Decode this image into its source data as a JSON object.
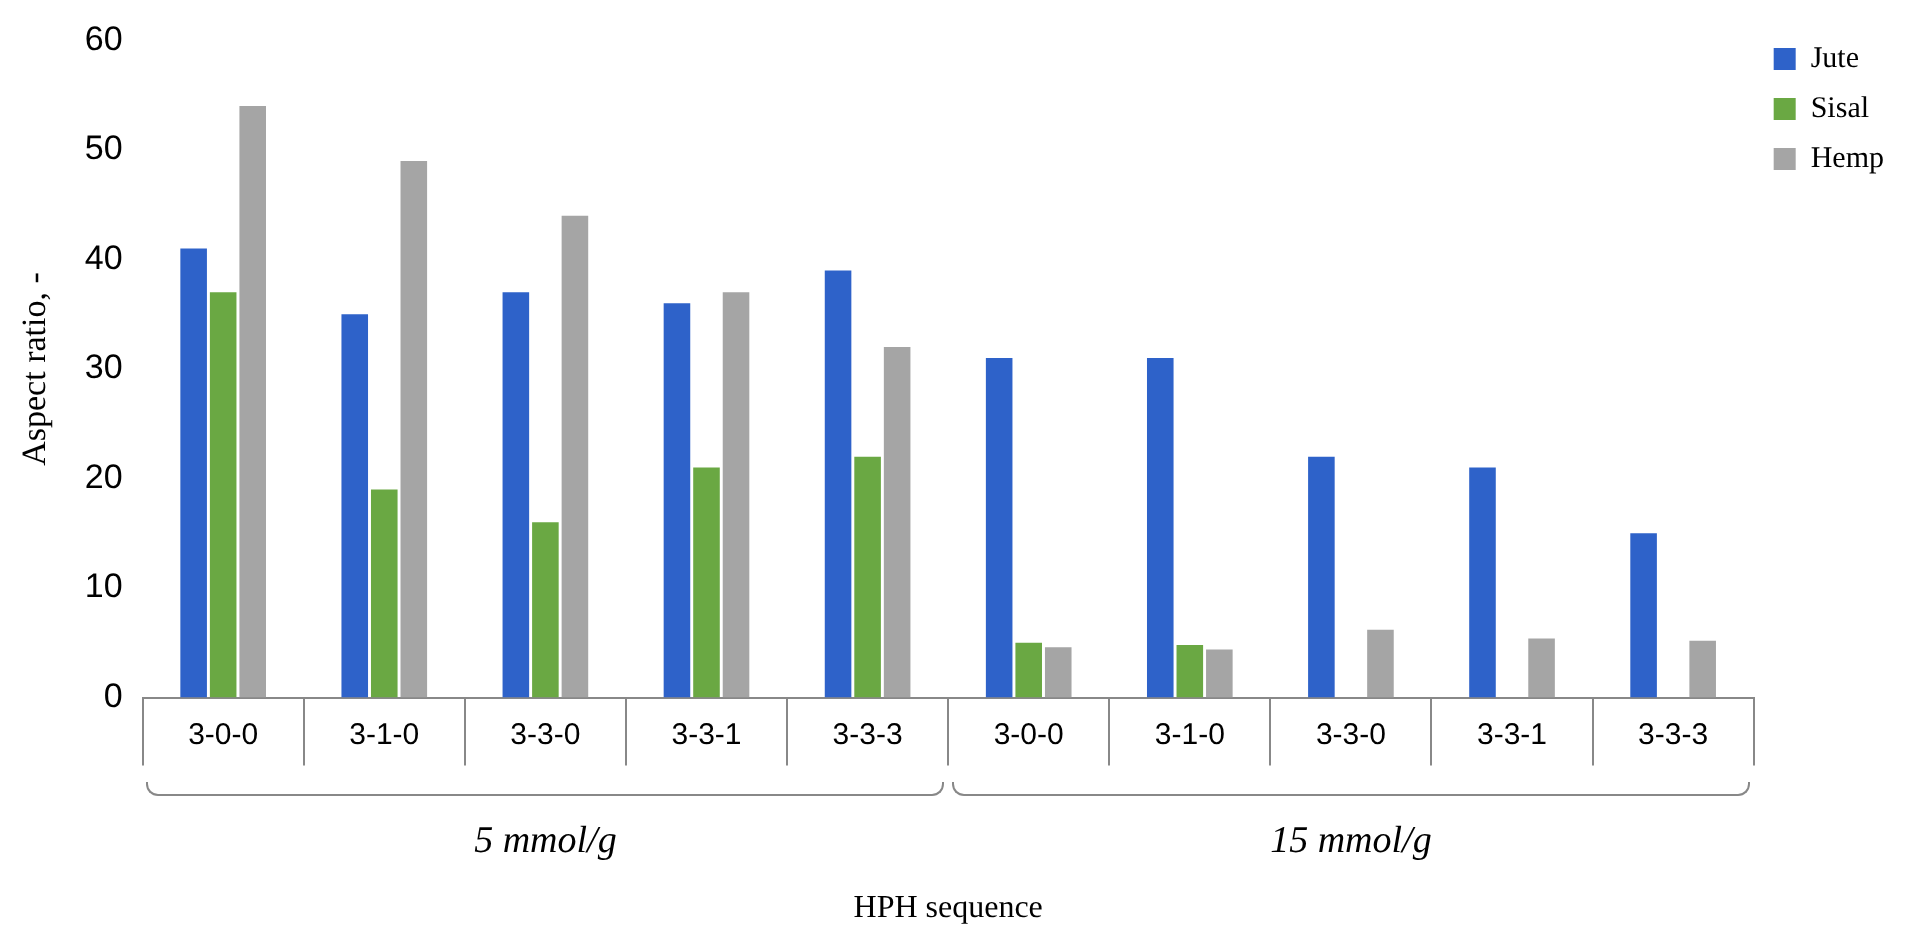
{
  "chart_data": {
    "type": "bar",
    "xlabel": "HPH sequence",
    "ylabel": "Aspect ratio, -",
    "categories": [
      "3-0-0",
      "3-1-0",
      "3-3-0",
      "3-3-1",
      "3-3-3",
      "3-0-0",
      "3-1-0",
      "3-3-0",
      "3-3-1",
      "3-3-3"
    ],
    "series": [
      {
        "name": "Jute",
        "color": "#2e62c9",
        "values": [
          41,
          35,
          37,
          36,
          39,
          31,
          31,
          22,
          21,
          15
        ]
      },
      {
        "name": "Sisal",
        "color": "#6aa843",
        "values": [
          37,
          19,
          16,
          21,
          22,
          5,
          4.8,
          null,
          null,
          null
        ]
      },
      {
        "name": "Hemp",
        "color": "#a5a5a5",
        "values": [
          54,
          49,
          44,
          37,
          32,
          4.6,
          4.4,
          6.2,
          5.4,
          5.2
        ]
      }
    ],
    "ylim": [
      0,
      60
    ],
    "yticks": [
      0,
      10,
      20,
      30,
      40,
      50,
      60
    ],
    "grid": false,
    "legend": "top right",
    "annotations": [
      "5 mmol/g",
      "15 mmol/g"
    ]
  }
}
